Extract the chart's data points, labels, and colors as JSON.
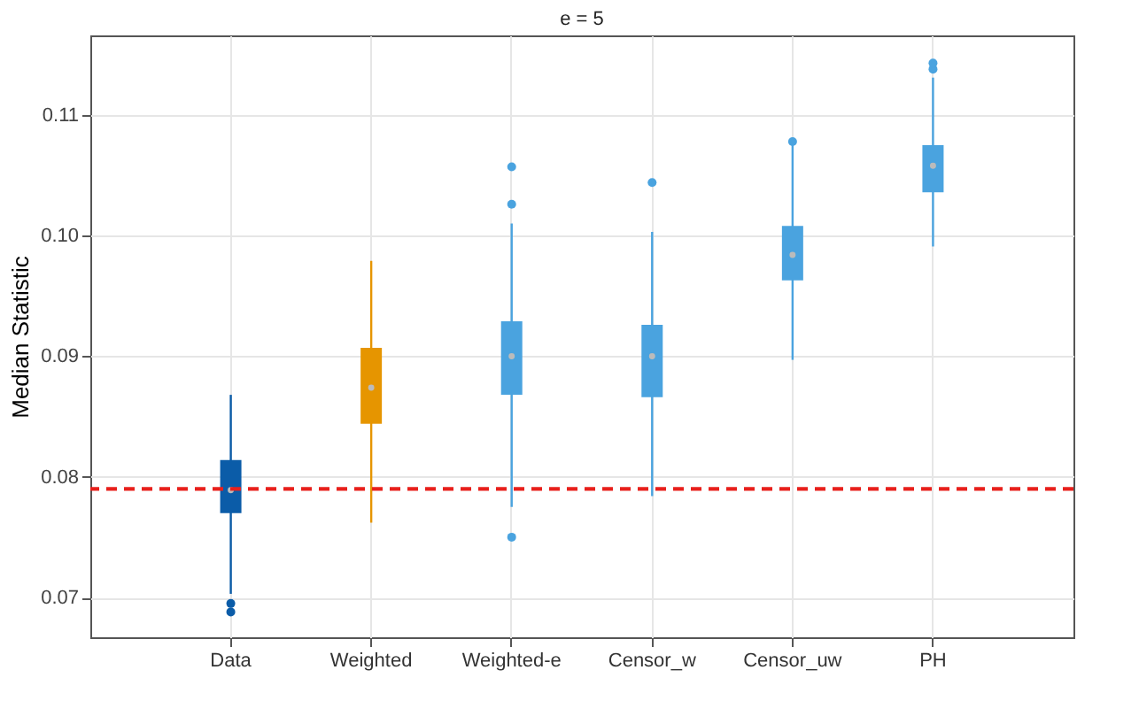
{
  "chart_data": {
    "type": "box",
    "title": "e = 5",
    "ylabel": "Median Statistic",
    "categories": [
      "Data",
      "Weighted",
      "Weighted-e",
      "Censor_w",
      "Censor_uw",
      "PH"
    ],
    "colors": [
      "#0b5ca8",
      "#e69500",
      "#4aa3df",
      "#4aa3df",
      "#4aa3df",
      "#4aa3df"
    ],
    "boxes": [
      {
        "low": 0.0703,
        "q1": 0.077,
        "median": 0.0789,
        "q3": 0.0814,
        "high": 0.0868,
        "outliers": [
          0.0695,
          0.0688
        ]
      },
      {
        "low": 0.0762,
        "q1": 0.0844,
        "median": 0.0874,
        "q3": 0.0907,
        "high": 0.0979
      },
      {
        "low": 0.0775,
        "q1": 0.0868,
        "median": 0.09,
        "q3": 0.0929,
        "high": 0.101,
        "outliers": [
          0.1026,
          0.1057,
          0.075
        ]
      },
      {
        "low": 0.0784,
        "q1": 0.0866,
        "median": 0.09,
        "q3": 0.0926,
        "high": 0.1003,
        "outliers": [
          0.1044
        ]
      },
      {
        "low": 0.0897,
        "q1": 0.0963,
        "median": 0.0984,
        "q3": 0.1008,
        "high": 0.1077,
        "outliers": [
          0.1078
        ]
      },
      {
        "low": 0.0991,
        "q1": 0.1036,
        "median": 0.1058,
        "q3": 0.1075,
        "high": 0.1131,
        "outliers": [
          0.1138,
          0.1143
        ]
      }
    ],
    "ylim": [
      0.0667,
      0.1166
    ],
    "yticks": [
      {
        "value": 0.07,
        "label": "0.07"
      },
      {
        "value": 0.08,
        "label": "0.08"
      },
      {
        "value": 0.09,
        "label": "0.09"
      },
      {
        "value": 0.1,
        "label": "0.10"
      },
      {
        "value": 0.11,
        "label": "0.11"
      }
    ],
    "ref_lines": [
      {
        "axis": "y",
        "value": 0.079,
        "color": "#e8201c",
        "line_style": "dashed"
      }
    ],
    "grid": true
  }
}
